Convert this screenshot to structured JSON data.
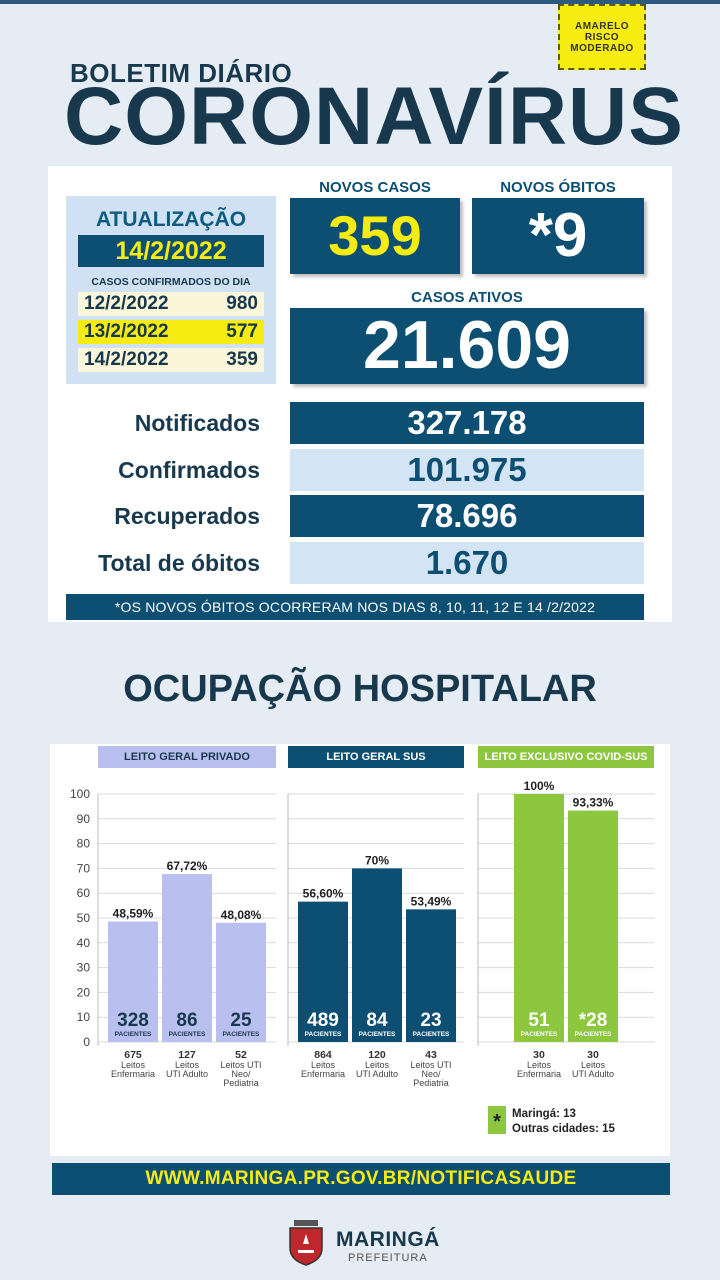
{
  "risk": {
    "line1": "AMARELO",
    "line2": "RISCO",
    "line3": "MODERADO",
    "color": "#f7ec12"
  },
  "header": {
    "subtitle": "BOLETIM DIÁRIO",
    "title": "CORONAVÍRUS"
  },
  "update": {
    "title": "ATUALIZAÇÃO",
    "date": "14/2/2022",
    "subtitle": "CASOS CONFIRMADOS DO DIA",
    "rows": [
      {
        "date": "12/2/2022",
        "value": "980"
      },
      {
        "date": "13/2/2022",
        "value": "577"
      },
      {
        "date": "14/2/2022",
        "value": "359"
      }
    ]
  },
  "new_cases": {
    "label": "NOVOS CASOS",
    "value": "359"
  },
  "new_deaths": {
    "label": "NOVOS ÓBITOS",
    "value": "*9"
  },
  "active": {
    "label": "CASOS ATIVOS",
    "value": "21.609"
  },
  "stats": [
    {
      "label": "Notificados",
      "value": "327.178"
    },
    {
      "label": "Confirmados",
      "value": "101.975"
    },
    {
      "label": "Recuperados",
      "value": "78.696"
    },
    {
      "label": "Total de óbitos",
      "value": "1.670"
    }
  ],
  "note": "*OS NOVOS  ÓBITOS OCORRERAM NOS DIAS 8, 10, 11, 12 E 14 /2/2022",
  "hospital_title": "OCUPAÇÃO HOSPITALAR",
  "chart_data": {
    "type": "bar",
    "ylim": [
      0,
      100
    ],
    "yticks": [
      0,
      10,
      20,
      30,
      40,
      50,
      60,
      70,
      80,
      90,
      100
    ],
    "groups": [
      {
        "name": "LEITO GERAL PRIVADO",
        "color": "#b9c0ef",
        "head_bg": "#b9c0ef",
        "head_fg": "#17384d",
        "bars": [
          {
            "pct": 48.59,
            "pct_label": "48,59%",
            "patients": "328",
            "unit": "PACIENTES",
            "beds": "675",
            "desc": [
              "Leitos",
              "Enfermaria"
            ]
          },
          {
            "pct": 67.72,
            "pct_label": "67,72%",
            "patients": "86",
            "unit": "PACIENTES",
            "beds": "127",
            "desc": [
              "Leitos",
              "UTI Adulto"
            ]
          },
          {
            "pct": 48.08,
            "pct_label": "48,08%",
            "patients": "25",
            "unit": "PACIENTES",
            "beds": "52",
            "desc": [
              "Leitos UTI",
              "Neo/",
              "Pediatria"
            ]
          }
        ]
      },
      {
        "name": "LEITO GERAL SUS",
        "color": "#0d4f73",
        "head_bg": "#0d4f73",
        "head_fg": "#ffffff",
        "bars": [
          {
            "pct": 56.6,
            "pct_label": "56,60%",
            "patients": "489",
            "unit": "PACIENTES",
            "beds": "864",
            "desc": [
              "Leitos",
              "Enfermaria"
            ]
          },
          {
            "pct": 70,
            "pct_label": "70%",
            "patients": "84",
            "unit": "PACIENTES",
            "beds": "120",
            "desc": [
              "Leitos",
              "UTI Adulto"
            ]
          },
          {
            "pct": 53.49,
            "pct_label": "53,49%",
            "patients": "23",
            "unit": "PACIENTES",
            "beds": "43",
            "desc": [
              "Leitos UTI",
              "Neo/",
              "Pediatria"
            ]
          }
        ]
      },
      {
        "name": "LEITO EXCLUSIVO COVID-SUS",
        "color": "#8dc63f",
        "head_bg": "#8dc63f",
        "head_fg": "#ffffff",
        "bars": [
          {
            "pct": 100,
            "pct_label": "100%",
            "patients": "51",
            "unit": "PACIENTES",
            "beds": "30",
            "desc": [
              "Leitos",
              "Enfermaria"
            ]
          },
          {
            "pct": 93.33,
            "pct_label": "93,33%",
            "patients": "*28",
            "unit": "PACIENTES",
            "beds": "30",
            "desc": [
              "Leitos",
              "UTI Adulto"
            ]
          }
        ]
      }
    ]
  },
  "legend": {
    "mark": "*",
    "line1": "Maringá: 13",
    "line2": "Outras cidades: 15"
  },
  "footer": {
    "url": "WWW.MARINGA.PR.GOV.BR/NOTIFICASAUDE",
    "name": "MARINGÁ",
    "sub": "PREFEITURA"
  }
}
